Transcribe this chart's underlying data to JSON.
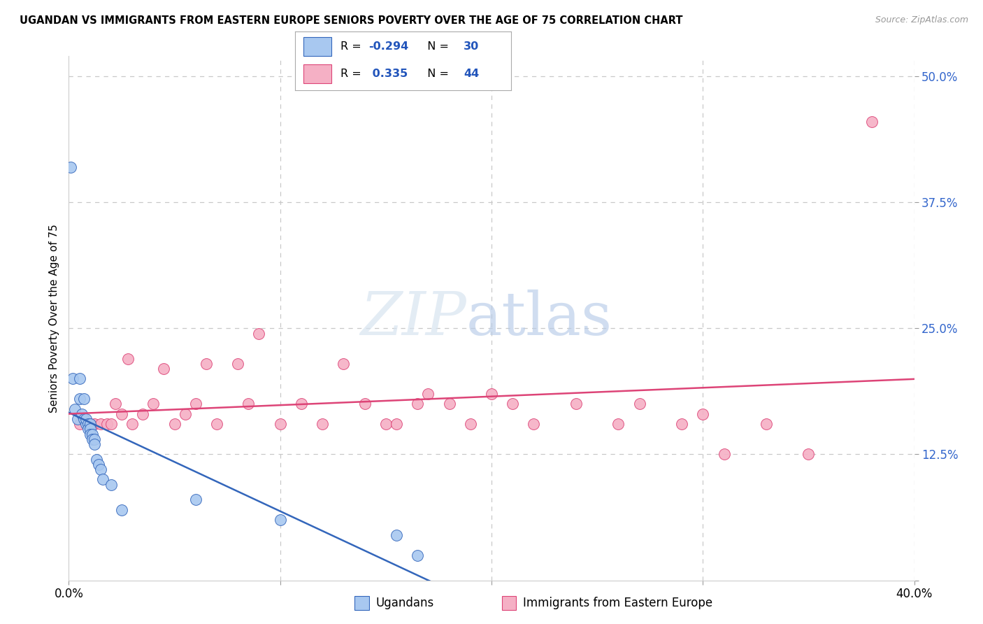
{
  "title": "UGANDAN VS IMMIGRANTS FROM EASTERN EUROPE SENIORS POVERTY OVER THE AGE OF 75 CORRELATION CHART",
  "source": "Source: ZipAtlas.com",
  "ylabel": "Seniors Poverty Over the Age of 75",
  "xlim": [
    0.0,
    0.4
  ],
  "ylim": [
    0.0,
    0.52
  ],
  "xticks": [
    0.0,
    0.1,
    0.2,
    0.3,
    0.4
  ],
  "xtick_labels": [
    "0.0%",
    "",
    "",
    "",
    "40.0%"
  ],
  "yticks": [
    0.0,
    0.125,
    0.25,
    0.375,
    0.5
  ],
  "ytick_labels": [
    "",
    "12.5%",
    "25.0%",
    "37.5%",
    "50.0%"
  ],
  "color_ugandan": "#a8c8f0",
  "color_eastern": "#f5b0c5",
  "line_color_ugandan": "#3366bb",
  "line_color_eastern": "#dd4477",
  "background_color": "#ffffff",
  "grid_color": "#c8c8c8",
  "ugandan_x": [
    0.001,
    0.002,
    0.003,
    0.004,
    0.005,
    0.005,
    0.006,
    0.007,
    0.007,
    0.008,
    0.008,
    0.009,
    0.009,
    0.01,
    0.01,
    0.01,
    0.011,
    0.011,
    0.012,
    0.012,
    0.013,
    0.014,
    0.015,
    0.016,
    0.02,
    0.025,
    0.06,
    0.1,
    0.155,
    0.165
  ],
  "ugandan_y": [
    0.41,
    0.2,
    0.17,
    0.16,
    0.18,
    0.2,
    0.165,
    0.18,
    0.16,
    0.155,
    0.16,
    0.155,
    0.15,
    0.155,
    0.15,
    0.145,
    0.145,
    0.14,
    0.14,
    0.135,
    0.12,
    0.115,
    0.11,
    0.1,
    0.095,
    0.07,
    0.08,
    0.06,
    0.045,
    0.025
  ],
  "eastern_x": [
    0.005,
    0.01,
    0.012,
    0.015,
    0.018,
    0.02,
    0.022,
    0.025,
    0.028,
    0.03,
    0.035,
    0.04,
    0.045,
    0.05,
    0.055,
    0.06,
    0.065,
    0.07,
    0.08,
    0.085,
    0.09,
    0.1,
    0.11,
    0.12,
    0.13,
    0.14,
    0.15,
    0.155,
    0.165,
    0.17,
    0.18,
    0.19,
    0.2,
    0.21,
    0.22,
    0.24,
    0.26,
    0.27,
    0.29,
    0.3,
    0.31,
    0.33,
    0.35,
    0.38
  ],
  "eastern_y": [
    0.155,
    0.155,
    0.155,
    0.155,
    0.155,
    0.155,
    0.175,
    0.165,
    0.22,
    0.155,
    0.165,
    0.175,
    0.21,
    0.155,
    0.165,
    0.175,
    0.215,
    0.155,
    0.215,
    0.175,
    0.245,
    0.155,
    0.175,
    0.155,
    0.215,
    0.175,
    0.155,
    0.155,
    0.175,
    0.185,
    0.175,
    0.155,
    0.185,
    0.175,
    0.155,
    0.175,
    0.155,
    0.175,
    0.155,
    0.165,
    0.125,
    0.155,
    0.125,
    0.455
  ]
}
